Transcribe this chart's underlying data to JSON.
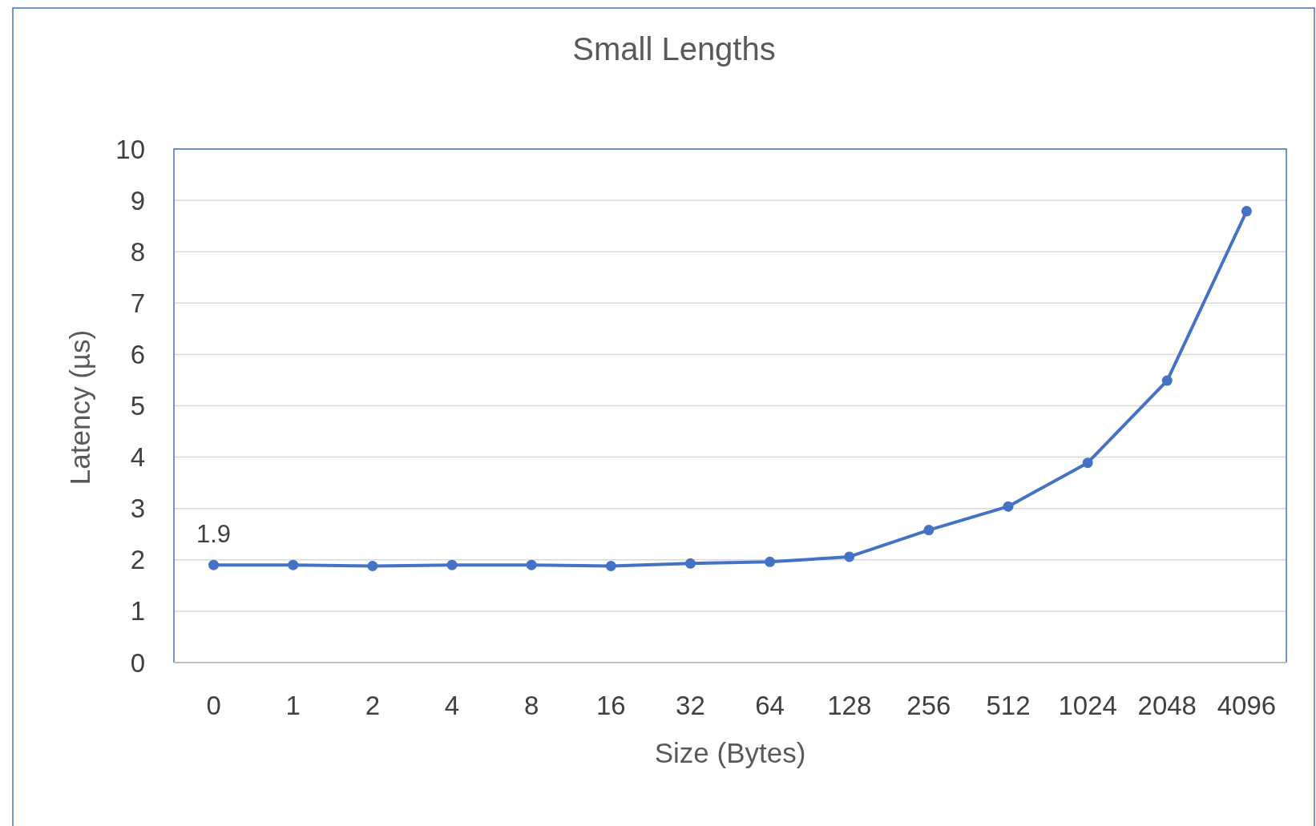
{
  "chart_data": {
    "type": "line",
    "title": "Small Lengths",
    "xlabel": "Size (Bytes)",
    "ylabel": "Latency (µs)",
    "categories": [
      "0",
      "1",
      "2",
      "4",
      "8",
      "16",
      "32",
      "64",
      "128",
      "256",
      "512",
      "1024",
      "2048",
      "4096"
    ],
    "series": [
      {
        "color": "#4472c4",
        "values": [
          1.9,
          1.9,
          1.88,
          1.9,
          1.9,
          1.88,
          1.93,
          1.96,
          2.06,
          2.58,
          3.04,
          3.89,
          5.49,
          8.79
        ],
        "value_labels": [
          "1.9",
          null,
          null,
          null,
          null,
          null,
          null,
          null,
          null,
          null,
          null,
          null,
          null,
          null
        ]
      }
    ],
    "ylim": [
      0,
      10
    ],
    "yticks": [
      0,
      1,
      2,
      3,
      4,
      5,
      6,
      7,
      8,
      9,
      10
    ],
    "grid": "y",
    "marker": "circle",
    "line_style": "solid"
  }
}
